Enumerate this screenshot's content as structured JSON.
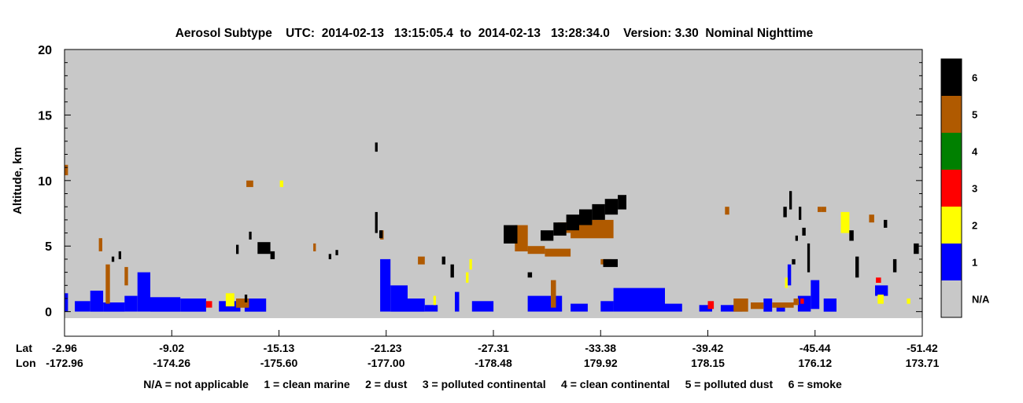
{
  "chart_data": {
    "type": "heatmap",
    "title": "Aerosol Subtype    UTC:  2014-02-13   13:15:05.4  to  2014-02-13   13:28:34.0    Version: 3.30  Nominal Nighttime",
    "ylabel": "Altitude, km",
    "ylim": [
      -0.5,
      20
    ],
    "y_ticks": [
      0,
      5,
      10,
      15,
      20
    ],
    "x_axis_row_labels": [
      "Lat",
      "Lon"
    ],
    "x_ticks": [
      {
        "lat": "-2.96",
        "lon": "-172.96"
      },
      {
        "lat": "-9.02",
        "lon": "-174.26"
      },
      {
        "lat": "-15.13",
        "lon": "-175.60"
      },
      {
        "lat": "-21.23",
        "lon": "-177.00"
      },
      {
        "lat": "-27.31",
        "lon": "-178.48"
      },
      {
        "lat": "-33.38",
        "lon": "179.92"
      },
      {
        "lat": "-39.42",
        "lon": "178.15"
      },
      {
        "lat": "-45.44",
        "lon": "176.12"
      },
      {
        "lat": "-51.42",
        "lon": "173.71"
      }
    ],
    "colorbar": [
      {
        "label": "N/A",
        "color": "#c8c8c8"
      },
      {
        "label": "1",
        "color": "#0000ff"
      },
      {
        "label": "2",
        "color": "#ffff00"
      },
      {
        "label": "3",
        "color": "#ff0000"
      },
      {
        "label": "4",
        "color": "#008000"
      },
      {
        "label": "5",
        "color": "#b05a00"
      },
      {
        "label": "6",
        "color": "#000000"
      }
    ],
    "legend_text": "N/A = not applicable     1 = clean marine     2 = dust     3 = polluted continental     4 = clean continental     5 = polluted dust     6 = smoke",
    "background_color": "#c8c8c8",
    "features": [
      {
        "subtype": 1,
        "x0": 0.0,
        "x1": 0.004,
        "y0": 0.0,
        "y1": 1.4
      },
      {
        "subtype": 1,
        "x0": 0.012,
        "x1": 0.03,
        "y0": 0.0,
        "y1": 0.8
      },
      {
        "subtype": 1,
        "x0": 0.03,
        "x1": 0.045,
        "y0": 0.0,
        "y1": 1.6
      },
      {
        "subtype": 1,
        "x0": 0.045,
        "x1": 0.07,
        "y0": 0.0,
        "y1": 0.7
      },
      {
        "subtype": 1,
        "x0": 0.07,
        "x1": 0.085,
        "y0": 0.0,
        "y1": 1.2
      },
      {
        "subtype": 1,
        "x0": 0.085,
        "x1": 0.1,
        "y0": 0.0,
        "y1": 3.0
      },
      {
        "subtype": 1,
        "x0": 0.1,
        "x1": 0.135,
        "y0": 0.0,
        "y1": 1.1
      },
      {
        "subtype": 1,
        "x0": 0.135,
        "x1": 0.165,
        "y0": 0.0,
        "y1": 1.0
      },
      {
        "subtype": 1,
        "x0": 0.18,
        "x1": 0.205,
        "y0": 0.0,
        "y1": 0.8
      },
      {
        "subtype": 1,
        "x0": 0.21,
        "x1": 0.235,
        "y0": 0.0,
        "y1": 1.0
      },
      {
        "subtype": 1,
        "x0": 0.368,
        "x1": 0.38,
        "y0": 0.0,
        "y1": 4.0
      },
      {
        "subtype": 1,
        "x0": 0.38,
        "x1": 0.4,
        "y0": 0.0,
        "y1": 2.0
      },
      {
        "subtype": 1,
        "x0": 0.4,
        "x1": 0.42,
        "y0": 0.0,
        "y1": 1.0
      },
      {
        "subtype": 1,
        "x0": 0.42,
        "x1": 0.435,
        "y0": 0.0,
        "y1": 0.5
      },
      {
        "subtype": 1,
        "x0": 0.455,
        "x1": 0.46,
        "y0": 0.0,
        "y1": 1.5
      },
      {
        "subtype": 1,
        "x0": 0.475,
        "x1": 0.5,
        "y0": 0.0,
        "y1": 0.8
      },
      {
        "subtype": 1,
        "x0": 0.54,
        "x1": 0.58,
        "y0": 0.0,
        "y1": 1.2
      },
      {
        "subtype": 1,
        "x0": 0.59,
        "x1": 0.61,
        "y0": 0.0,
        "y1": 0.6
      },
      {
        "subtype": 1,
        "x0": 0.625,
        "x1": 0.64,
        "y0": 0.0,
        "y1": 0.8
      },
      {
        "subtype": 1,
        "x0": 0.64,
        "x1": 0.7,
        "y0": 0.0,
        "y1": 1.8
      },
      {
        "subtype": 1,
        "x0": 0.7,
        "x1": 0.72,
        "y0": 0.0,
        "y1": 0.6
      },
      {
        "subtype": 1,
        "x0": 0.74,
        "x1": 0.755,
        "y0": 0.0,
        "y1": 0.5
      },
      {
        "subtype": 1,
        "x0": 0.765,
        "x1": 0.79,
        "y0": 0.0,
        "y1": 0.5
      },
      {
        "subtype": 1,
        "x0": 0.815,
        "x1": 0.825,
        "y0": 0.0,
        "y1": 1.0
      },
      {
        "subtype": 1,
        "x0": 0.83,
        "x1": 0.84,
        "y0": 0.0,
        "y1": 0.6
      },
      {
        "subtype": 1,
        "x0": 0.843,
        "x1": 0.847,
        "y0": 2.0,
        "y1": 3.6
      },
      {
        "subtype": 1,
        "x0": 0.855,
        "x1": 0.87,
        "y0": 0.0,
        "y1": 1.2
      },
      {
        "subtype": 1,
        "x0": 0.87,
        "x1": 0.88,
        "y0": 0.2,
        "y1": 2.4
      },
      {
        "subtype": 1,
        "x0": 0.885,
        "x1": 0.9,
        "y0": 0.0,
        "y1": 1.0
      },
      {
        "subtype": 1,
        "x0": 0.945,
        "x1": 0.96,
        "y0": 1.2,
        "y1": 2.0
      },
      {
        "subtype": 2,
        "x0": 0.188,
        "x1": 0.198,
        "y0": 0.4,
        "y1": 1.4
      },
      {
        "subtype": 2,
        "x0": 0.251,
        "x1": 0.255,
        "y0": 9.5,
        "y1": 10.0
      },
      {
        "subtype": 2,
        "x0": 0.43,
        "x1": 0.433,
        "y0": 0.5,
        "y1": 1.2
      },
      {
        "subtype": 2,
        "x0": 0.468,
        "x1": 0.471,
        "y0": 2.2,
        "y1": 3.0
      },
      {
        "subtype": 2,
        "x0": 0.472,
        "x1": 0.475,
        "y0": 3.2,
        "y1": 4.0
      },
      {
        "subtype": 2,
        "x0": 0.84,
        "x1": 0.843,
        "y0": 1.8,
        "y1": 2.6
      },
      {
        "subtype": 2,
        "x0": 0.905,
        "x1": 0.915,
        "y0": 6.0,
        "y1": 7.6
      },
      {
        "subtype": 2,
        "x0": 0.948,
        "x1": 0.955,
        "y0": 0.6,
        "y1": 1.3
      },
      {
        "subtype": 2,
        "x0": 0.982,
        "x1": 0.986,
        "y0": 0.6,
        "y1": 1.0
      },
      {
        "subtype": 3,
        "x0": 0.165,
        "x1": 0.172,
        "y0": 0.3,
        "y1": 0.8
      },
      {
        "subtype": 3,
        "x0": 0.75,
        "x1": 0.757,
        "y0": 0.2,
        "y1": 0.8
      },
      {
        "subtype": 3,
        "x0": 0.858,
        "x1": 0.862,
        "y0": 0.6,
        "y1": 1.0
      },
      {
        "subtype": 3,
        "x0": 0.946,
        "x1": 0.952,
        "y0": 2.2,
        "y1": 2.6
      },
      {
        "subtype": 5,
        "x0": 0.0,
        "x1": 0.004,
        "y0": 10.4,
        "y1": 11.2
      },
      {
        "subtype": 5,
        "x0": 0.04,
        "x1": 0.044,
        "y0": 4.6,
        "y1": 5.6
      },
      {
        "subtype": 5,
        "x0": 0.048,
        "x1": 0.053,
        "y0": 0.6,
        "y1": 3.6
      },
      {
        "subtype": 5,
        "x0": 0.07,
        "x1": 0.074,
        "y0": 2.0,
        "y1": 3.4
      },
      {
        "subtype": 5,
        "x0": 0.2,
        "x1": 0.215,
        "y0": 0.3,
        "y1": 1.0
      },
      {
        "subtype": 5,
        "x0": 0.212,
        "x1": 0.22,
        "y0": 9.5,
        "y1": 10.0
      },
      {
        "subtype": 5,
        "x0": 0.29,
        "x1": 0.293,
        "y0": 4.6,
        "y1": 5.2
      },
      {
        "subtype": 5,
        "x0": 0.368,
        "x1": 0.372,
        "y0": 5.5,
        "y1": 6.2
      },
      {
        "subtype": 5,
        "x0": 0.412,
        "x1": 0.42,
        "y0": 3.6,
        "y1": 4.2
      },
      {
        "subtype": 5,
        "x0": 0.525,
        "x1": 0.54,
        "y0": 4.6,
        "y1": 6.6
      },
      {
        "subtype": 5,
        "x0": 0.54,
        "x1": 0.56,
        "y0": 4.4,
        "y1": 5.0
      },
      {
        "subtype": 5,
        "x0": 0.56,
        "x1": 0.59,
        "y0": 4.2,
        "y1": 4.8
      },
      {
        "subtype": 5,
        "x0": 0.575,
        "x1": 0.59,
        "y0": 6.0,
        "y1": 6.8
      },
      {
        "subtype": 5,
        "x0": 0.567,
        "x1": 0.573,
        "y0": 0.3,
        "y1": 2.4
      },
      {
        "subtype": 5,
        "x0": 0.59,
        "x1": 0.64,
        "y0": 5.6,
        "y1": 7.0
      },
      {
        "subtype": 5,
        "x0": 0.625,
        "x1": 0.638,
        "y0": 3.6,
        "y1": 4.0
      },
      {
        "subtype": 5,
        "x0": 0.77,
        "x1": 0.775,
        "y0": 7.4,
        "y1": 8.0
      },
      {
        "subtype": 5,
        "x0": 0.78,
        "x1": 0.797,
        "y0": 0.0,
        "y1": 1.0
      },
      {
        "subtype": 5,
        "x0": 0.8,
        "x1": 0.815,
        "y0": 0.2,
        "y1": 0.7
      },
      {
        "subtype": 5,
        "x0": 0.825,
        "x1": 0.85,
        "y0": 0.3,
        "y1": 0.7
      },
      {
        "subtype": 5,
        "x0": 0.85,
        "x1": 0.856,
        "y0": 0.5,
        "y1": 1.0
      },
      {
        "subtype": 5,
        "x0": 0.878,
        "x1": 0.882,
        "y0": 7.6,
        "y1": 8.0
      },
      {
        "subtype": 5,
        "x0": 0.882,
        "x1": 0.888,
        "y0": 7.6,
        "y1": 8.0
      },
      {
        "subtype": 5,
        "x0": 0.938,
        "x1": 0.944,
        "y0": 6.8,
        "y1": 7.4
      },
      {
        "subtype": 6,
        "x0": 0.055,
        "x1": 0.058,
        "y0": 3.8,
        "y1": 4.2
      },
      {
        "subtype": 6,
        "x0": 0.063,
        "x1": 0.066,
        "y0": 4.0,
        "y1": 4.6
      },
      {
        "subtype": 6,
        "x0": 0.2,
        "x1": 0.203,
        "y0": 4.4,
        "y1": 5.1
      },
      {
        "subtype": 6,
        "x0": 0.21,
        "x1": 0.213,
        "y0": 0.7,
        "y1": 1.3
      },
      {
        "subtype": 6,
        "x0": 0.215,
        "x1": 0.218,
        "y0": 5.5,
        "y1": 6.1
      },
      {
        "subtype": 6,
        "x0": 0.225,
        "x1": 0.24,
        "y0": 4.4,
        "y1": 5.3
      },
      {
        "subtype": 6,
        "x0": 0.24,
        "x1": 0.245,
        "y0": 4.0,
        "y1": 4.6
      },
      {
        "subtype": 6,
        "x0": 0.308,
        "x1": 0.311,
        "y0": 4.0,
        "y1": 4.4
      },
      {
        "subtype": 6,
        "x0": 0.316,
        "x1": 0.319,
        "y0": 4.3,
        "y1": 4.7
      },
      {
        "subtype": 6,
        "x0": 0.362,
        "x1": 0.365,
        "y0": 12.2,
        "y1": 12.9
      },
      {
        "subtype": 6,
        "x0": 0.362,
        "x1": 0.365,
        "y0": 6.0,
        "y1": 7.6
      },
      {
        "subtype": 6,
        "x0": 0.367,
        "x1": 0.371,
        "y0": 5.6,
        "y1": 6.2
      },
      {
        "subtype": 6,
        "x0": 0.44,
        "x1": 0.444,
        "y0": 3.6,
        "y1": 4.2
      },
      {
        "subtype": 6,
        "x0": 0.45,
        "x1": 0.454,
        "y0": 2.6,
        "y1": 3.6
      },
      {
        "subtype": 6,
        "x0": 0.512,
        "x1": 0.528,
        "y0": 5.2,
        "y1": 6.6
      },
      {
        "subtype": 6,
        "x0": 0.54,
        "x1": 0.545,
        "y0": 2.6,
        "y1": 3.0
      },
      {
        "subtype": 6,
        "x0": 0.555,
        "x1": 0.57,
        "y0": 5.4,
        "y1": 6.2
      },
      {
        "subtype": 6,
        "x0": 0.57,
        "x1": 0.585,
        "y0": 5.8,
        "y1": 6.8
      },
      {
        "subtype": 6,
        "x0": 0.585,
        "x1": 0.6,
        "y0": 6.2,
        "y1": 7.4
      },
      {
        "subtype": 6,
        "x0": 0.6,
        "x1": 0.615,
        "y0": 6.6,
        "y1": 7.8
      },
      {
        "subtype": 6,
        "x0": 0.615,
        "x1": 0.63,
        "y0": 7.0,
        "y1": 8.2
      },
      {
        "subtype": 6,
        "x0": 0.63,
        "x1": 0.645,
        "y0": 7.4,
        "y1": 8.6
      },
      {
        "subtype": 6,
        "x0": 0.645,
        "x1": 0.655,
        "y0": 7.8,
        "y1": 8.9
      },
      {
        "subtype": 6,
        "x0": 0.628,
        "x1": 0.645,
        "y0": 3.4,
        "y1": 4.0
      },
      {
        "subtype": 6,
        "x0": 0.845,
        "x1": 0.848,
        "y0": 7.8,
        "y1": 9.2
      },
      {
        "subtype": 6,
        "x0": 0.838,
        "x1": 0.842,
        "y0": 7.2,
        "y1": 8.0
      },
      {
        "subtype": 6,
        "x0": 0.856,
        "x1": 0.859,
        "y0": 7.0,
        "y1": 8.0
      },
      {
        "subtype": 6,
        "x0": 0.86,
        "x1": 0.864,
        "y0": 5.8,
        "y1": 6.4
      },
      {
        "subtype": 6,
        "x0": 0.866,
        "x1": 0.869,
        "y0": 3.0,
        "y1": 5.2
      },
      {
        "subtype": 6,
        "x0": 0.852,
        "x1": 0.855,
        "y0": 5.4,
        "y1": 5.8
      },
      {
        "subtype": 6,
        "x0": 0.848,
        "x1": 0.852,
        "y0": 3.6,
        "y1": 4.0
      },
      {
        "subtype": 6,
        "x0": 0.922,
        "x1": 0.926,
        "y0": 2.6,
        "y1": 4.2
      },
      {
        "subtype": 6,
        "x0": 0.915,
        "x1": 0.92,
        "y0": 5.4,
        "y1": 6.2
      },
      {
        "subtype": 6,
        "x0": 0.955,
        "x1": 0.959,
        "y0": 6.4,
        "y1": 7.0
      },
      {
        "subtype": 6,
        "x0": 0.966,
        "x1": 0.97,
        "y0": 3.0,
        "y1": 4.0
      },
      {
        "subtype": 6,
        "x0": 0.99,
        "x1": 0.996,
        "y0": 4.4,
        "y1": 5.2
      }
    ]
  }
}
